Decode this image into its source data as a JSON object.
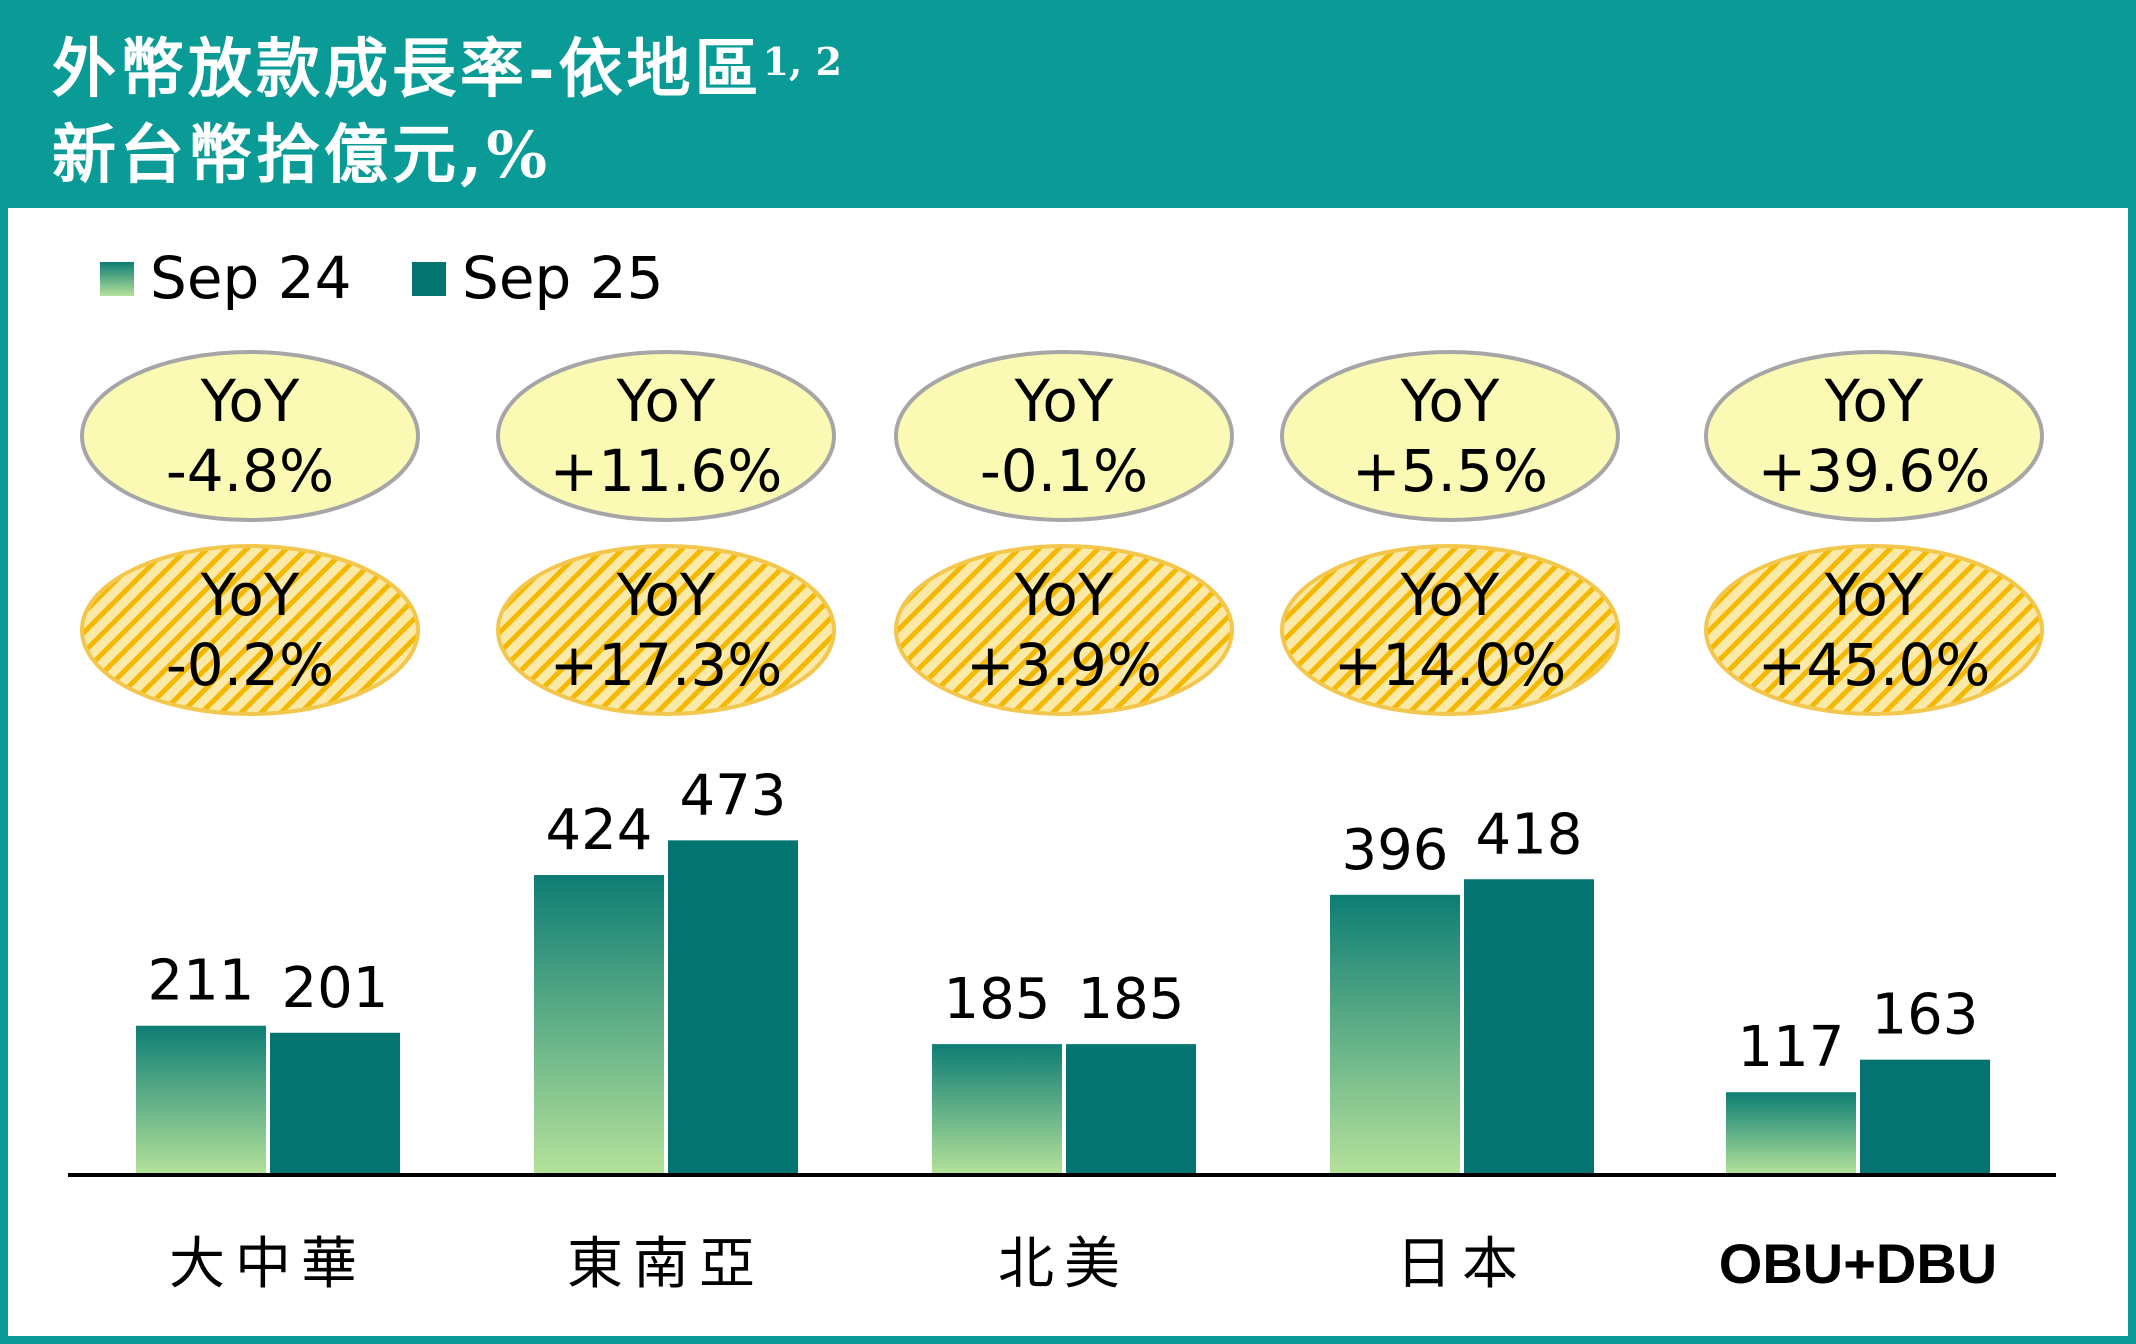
{
  "header": {
    "title": "外幣放款成長率-依地區",
    "title_sup": "1, 2",
    "subtitle": "新台幣拾億元,%"
  },
  "colors": {
    "header_bg": "#0a9b96",
    "sep25_bar": "#047470",
    "sep24_gradient_top": "#0d7d74",
    "sep24_gradient_bottom": "#b5e29a",
    "ellipse_fill": "#fafab4",
    "ellipse_stroke": "#a6a6a6",
    "hatch_fill": "#fbe9a8",
    "hatch_stripe": "#f5b800"
  },
  "chart_data": {
    "type": "bar",
    "categories": [
      "大中華",
      "東南亞",
      "北美",
      "日本",
      "OBU+DBU"
    ],
    "series": [
      {
        "name": "Sep 24",
        "values": [
          211,
          424,
          185,
          396,
          117
        ]
      },
      {
        "name": "Sep 25",
        "values": [
          201,
          473,
          185,
          418,
          163
        ]
      }
    ],
    "value_labels": [
      [
        "211",
        "424",
        "185",
        "396",
        "117"
      ],
      [
        "201",
        "473",
        "185",
        "418",
        "163"
      ]
    ],
    "yoy_rows": [
      {
        "style": "solid",
        "label": "YoY",
        "values": [
          "-4.8%",
          "+11.6%",
          "-0.1%",
          "+5.5%",
          "+39.6%"
        ]
      },
      {
        "style": "hatched",
        "label": "YoY",
        "values": [
          "-0.2%",
          "+17.3%",
          "+3.9%",
          "+14.0%",
          "+45.0%"
        ]
      }
    ],
    "legend_position": "top-left",
    "ylim": [
      0,
      500
    ],
    "grid": false
  }
}
